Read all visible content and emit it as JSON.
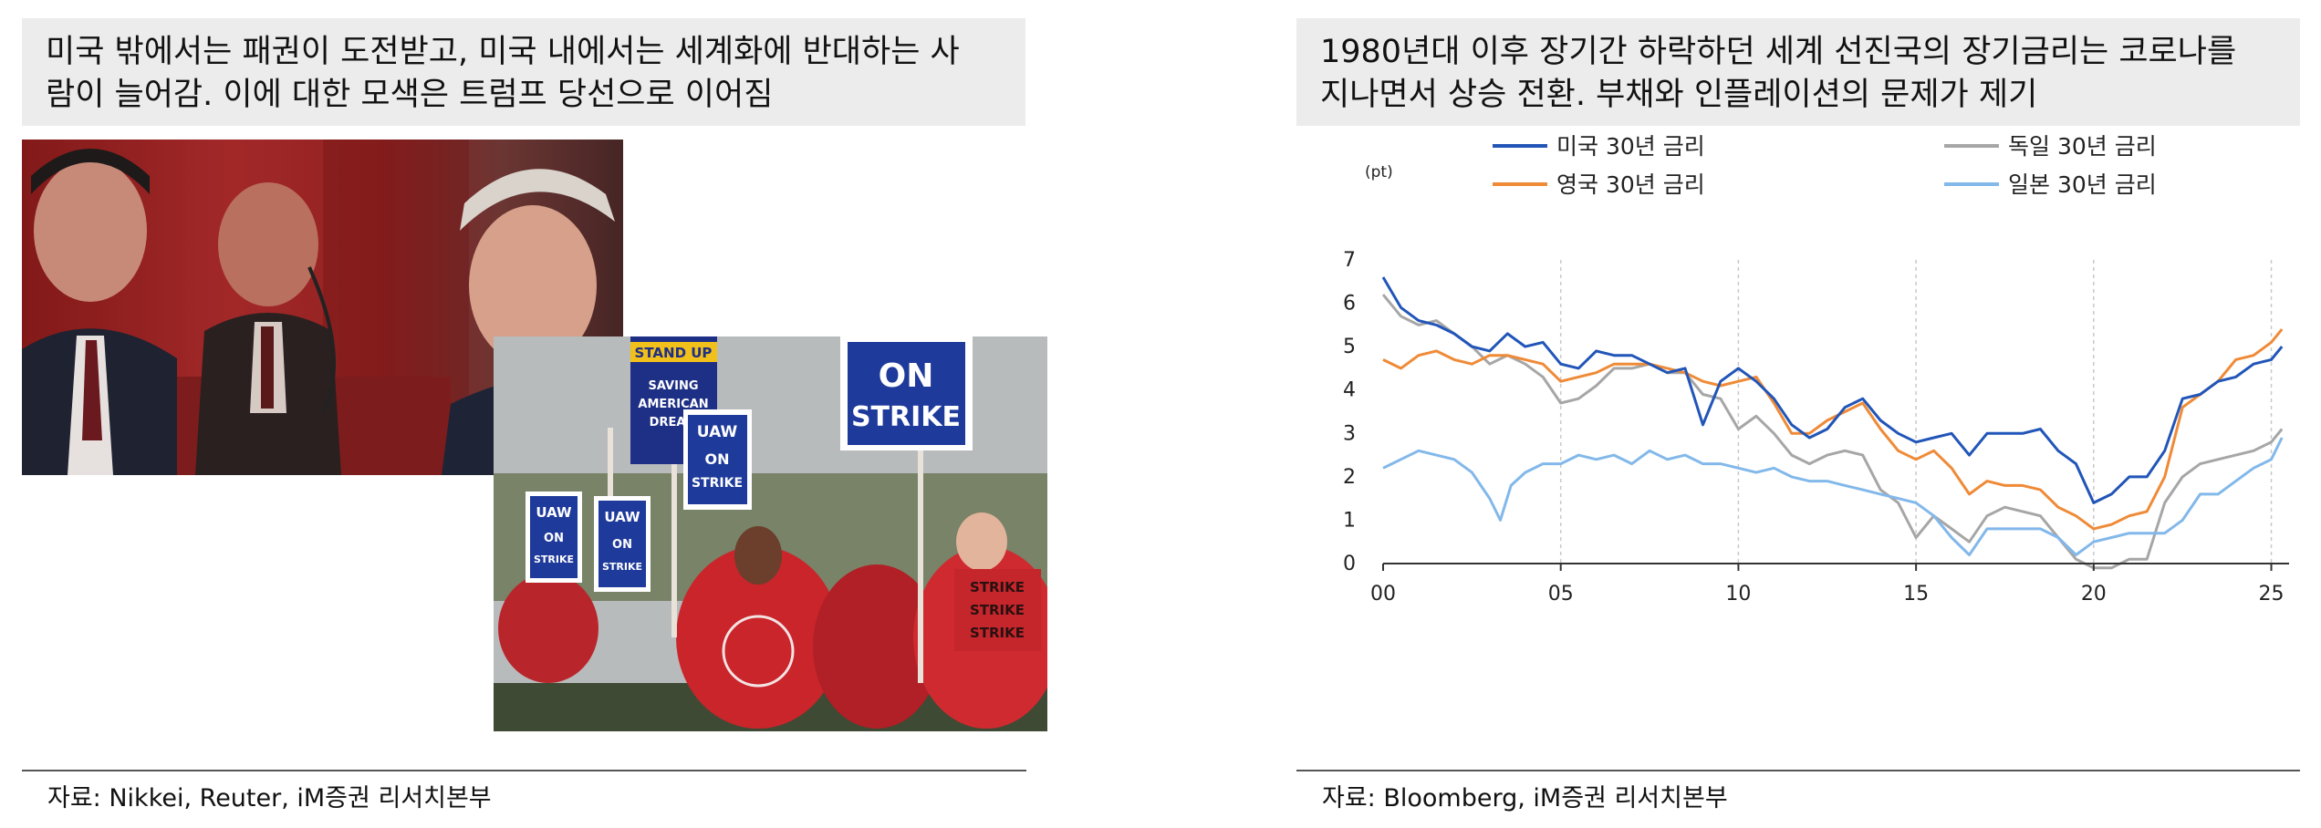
{
  "left": {
    "headline_line1": "미국 밖에서는 패권이 도전받고, 미국 내에서는 세계화에 반대하는 사",
    "headline_line2": "람이 늘어감. 이에 대한 모색은 트럼프 당선으로 이어짐",
    "photo_signs": [
      "STAND UP",
      "SAVING AMERICAN DREAM",
      "ON STRIKE",
      "UAW",
      "UAW ON STRIKE",
      "STRIKE STRIKE STRIKE"
    ],
    "source": "자료: Nikkei, Reuter, iM증권 리서치본부"
  },
  "right": {
    "headline_line1": "1980년대 이후 장기간 하락하던 세계 선진국의 장기금리는 코로나를",
    "headline_line2": "지나면서 상승 전환. 부채와 인플레이션의 문제가 제기",
    "source": "자료: Bloomberg, iM증권 리서치본부"
  },
  "colors": {
    "us": "#2155b8",
    "de": "#a6a6a6",
    "uk": "#ef8a37",
    "jp": "#82b8ea"
  },
  "chart_data": {
    "type": "line",
    "y_unit_label": "(pt)",
    "ylim": [
      0,
      7
    ],
    "yticks": [
      "0",
      "1",
      "2",
      "3",
      "4",
      "5",
      "6",
      "7"
    ],
    "xlim": [
      0,
      25.5
    ],
    "xticks": [
      {
        "v": 0,
        "label": "00"
      },
      {
        "v": 5,
        "label": "05"
      },
      {
        "v": 10,
        "label": "10"
      },
      {
        "v": 15,
        "label": "15"
      },
      {
        "v": 20,
        "label": "20"
      },
      {
        "v": 25,
        "label": "25"
      }
    ],
    "grid": "vertical dashed at x ticks",
    "legend": "top, two columns",
    "series": [
      {
        "key": "de",
        "name": "독일 30년 금리",
        "x": [
          0,
          0.5,
          1,
          1.5,
          2,
          2.5,
          3,
          3.5,
          4,
          4.5,
          5,
          5.5,
          6,
          6.5,
          7,
          7.5,
          8,
          8.5,
          9,
          9.5,
          10,
          10.5,
          11,
          11.5,
          12,
          12.5,
          13,
          13.5,
          14,
          14.5,
          15,
          15.5,
          16,
          16.5,
          17,
          17.5,
          18,
          18.5,
          19,
          19.5,
          20,
          20.5,
          21,
          21.5,
          22,
          22.5,
          23,
          23.5,
          24,
          24.5,
          25,
          25.3
        ],
        "y": [
          6.2,
          5.7,
          5.5,
          5.6,
          5.3,
          5.0,
          4.6,
          4.8,
          4.6,
          4.3,
          3.7,
          3.8,
          4.1,
          4.5,
          4.5,
          4.6,
          4.4,
          4.4,
          3.9,
          3.8,
          3.1,
          3.4,
          3.0,
          2.5,
          2.3,
          2.5,
          2.6,
          2.5,
          1.7,
          1.4,
          0.6,
          1.1,
          0.8,
          0.5,
          1.1,
          1.3,
          1.2,
          1.1,
          0.6,
          0.1,
          -0.1,
          -0.1,
          0.1,
          0.1,
          1.4,
          2.0,
          2.3,
          2.4,
          2.5,
          2.6,
          2.8,
          3.1
        ]
      },
      {
        "key": "jp",
        "name": "일본 30년 금리",
        "x": [
          0,
          0.5,
          1,
          1.5,
          2,
          2.5,
          3,
          3.3,
          3.6,
          4,
          4.5,
          5,
          5.5,
          6,
          6.5,
          7,
          7.5,
          8,
          8.5,
          9,
          9.5,
          10,
          10.5,
          11,
          11.5,
          12,
          12.5,
          13,
          13.5,
          14,
          14.5,
          15,
          15.5,
          16,
          16.5,
          17,
          17.5,
          18,
          18.5,
          19,
          19.5,
          20,
          20.5,
          21,
          21.5,
          22,
          22.5,
          23,
          23.5,
          24,
          24.5,
          25,
          25.3
        ],
        "y": [
          2.2,
          2.4,
          2.6,
          2.5,
          2.4,
          2.1,
          1.5,
          1.0,
          1.8,
          2.1,
          2.3,
          2.3,
          2.5,
          2.4,
          2.5,
          2.3,
          2.6,
          2.4,
          2.5,
          2.3,
          2.3,
          2.2,
          2.1,
          2.2,
          2.0,
          1.9,
          1.9,
          1.8,
          1.7,
          1.6,
          1.5,
          1.4,
          1.1,
          0.6,
          0.2,
          0.8,
          0.8,
          0.8,
          0.8,
          0.6,
          0.2,
          0.5,
          0.6,
          0.7,
          0.7,
          0.7,
          1.0,
          1.6,
          1.6,
          1.9,
          2.2,
          2.4,
          2.9
        ]
      },
      {
        "key": "uk",
        "name": "영국 30년 금리",
        "x": [
          0,
          0.5,
          1,
          1.5,
          2,
          2.5,
          3,
          3.5,
          4,
          4.5,
          5,
          5.5,
          6,
          6.5,
          7,
          7.5,
          8,
          8.5,
          9,
          9.5,
          10,
          10.5,
          11,
          11.5,
          12,
          12.5,
          13,
          13.5,
          14,
          14.5,
          15,
          15.5,
          16,
          16.5,
          17,
          17.5,
          18,
          18.5,
          19,
          19.5,
          20,
          20.5,
          21,
          21.5,
          22,
          22.5,
          23,
          23.5,
          24,
          24.5,
          25,
          25.3
        ],
        "y": [
          4.7,
          4.5,
          4.8,
          4.9,
          4.7,
          4.6,
          4.8,
          4.8,
          4.7,
          4.6,
          4.2,
          4.3,
          4.4,
          4.6,
          4.6,
          4.6,
          4.5,
          4.4,
          4.2,
          4.1,
          4.2,
          4.3,
          3.7,
          3.0,
          3.0,
          3.3,
          3.5,
          3.7,
          3.1,
          2.6,
          2.4,
          2.6,
          2.2,
          1.6,
          1.9,
          1.8,
          1.8,
          1.7,
          1.3,
          1.1,
          0.8,
          0.9,
          1.1,
          1.2,
          2.0,
          3.6,
          3.9,
          4.2,
          4.7,
          4.8,
          5.1,
          5.4
        ]
      },
      {
        "key": "us",
        "name": "미국 30년 금리",
        "x": [
          0,
          0.5,
          1,
          1.5,
          2,
          2.5,
          3,
          3.5,
          4,
          4.5,
          5,
          5.5,
          6,
          6.5,
          7,
          7.5,
          8,
          8.5,
          9,
          9.5,
          10,
          10.5,
          11,
          11.5,
          12,
          12.5,
          13,
          13.5,
          14,
          14.5,
          15,
          15.5,
          16,
          16.5,
          17,
          17.5,
          18,
          18.5,
          19,
          19.5,
          20,
          20.5,
          21,
          21.5,
          22,
          22.5,
          23,
          23.5,
          24,
          24.5,
          25,
          25.3
        ],
        "y": [
          6.6,
          5.9,
          5.6,
          5.5,
          5.3,
          5.0,
          4.9,
          5.3,
          5.0,
          5.1,
          4.6,
          4.5,
          4.9,
          4.8,
          4.8,
          4.6,
          4.4,
          4.5,
          3.2,
          4.2,
          4.5,
          4.2,
          3.8,
          3.2,
          2.9,
          3.1,
          3.6,
          3.8,
          3.3,
          3.0,
          2.8,
          2.9,
          3.0,
          2.5,
          3.0,
          3.0,
          3.0,
          3.1,
          2.6,
          2.3,
          1.4,
          1.6,
          2.0,
          2.0,
          2.6,
          3.8,
          3.9,
          4.2,
          4.3,
          4.6,
          4.7,
          5.0
        ]
      }
    ]
  }
}
